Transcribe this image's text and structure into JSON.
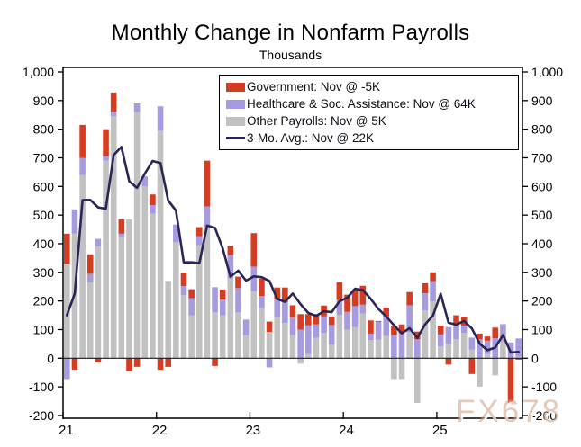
{
  "title": "Monthly Change in Nonfarm Payrolls",
  "subtitle": "Thousands",
  "watermark": "FX678",
  "legend": {
    "items": [
      {
        "label": "Government: Nov @ -5K",
        "color": "#d43d21",
        "type": "box"
      },
      {
        "label": "Healthcare & Soc. Assistance: Nov @ 64K",
        "color": "#a79ade",
        "type": "box"
      },
      {
        "label": "Other Payrolls: Nov @ 5K",
        "color": "#c1c1c1",
        "type": "box"
      },
      {
        "label": "3-Mo. Avg.: Nov @ 22K",
        "color": "#2b2556",
        "type": "line"
      }
    ]
  },
  "chart_data": {
    "type": "bar",
    "subtype": "stacked-bars-with-line",
    "title": "Monthly Change in Nonfarm Payrolls",
    "ylabel": "Thousands",
    "grid": false,
    "legend_position": "top-center",
    "ylim": [
      -210,
      1015
    ],
    "y_ticks": [
      1000,
      900,
      800,
      700,
      600,
      500,
      400,
      300,
      200,
      100,
      0,
      -100,
      -200
    ],
    "x_ticks": [
      {
        "label": "21",
        "index": 0
      },
      {
        "label": "22",
        "index": 12
      },
      {
        "label": "23",
        "index": 24
      },
      {
        "label": "24",
        "index": 36
      },
      {
        "label": "25",
        "index": 48
      }
    ],
    "categories": [
      "Jan-21",
      "Feb-21",
      "Mar-21",
      "Apr-21",
      "May-21",
      "Jun-21",
      "Jul-21",
      "Aug-21",
      "Sep-21",
      "Oct-21",
      "Nov-21",
      "Dec-21",
      "Jan-22",
      "Feb-22",
      "Mar-22",
      "Apr-22",
      "May-22",
      "Jun-22",
      "Jul-22",
      "Aug-22",
      "Sep-22",
      "Oct-22",
      "Nov-22",
      "Dec-22",
      "Jan-23",
      "Feb-23",
      "Mar-23",
      "Apr-23",
      "May-23",
      "Jun-23",
      "Jul-23",
      "Aug-23",
      "Sep-23",
      "Oct-23",
      "Nov-23",
      "Dec-23",
      "Jan-24",
      "Feb-24",
      "Mar-24",
      "Apr-24",
      "May-24",
      "Jun-24",
      "Jul-24",
      "Aug-24",
      "Sep-24",
      "Oct-24",
      "Nov-24",
      "Dec-24",
      "Jan-25",
      "Feb-25",
      "Mar-25",
      "Apr-25",
      "May-25",
      "Jun-25",
      "Jul-25",
      "Aug-25",
      "Sep-25",
      "Oct-25",
      "Nov-25"
    ],
    "series": [
      {
        "name": "Other Payrolls",
        "key": "other",
        "color": "#c1c1c1",
        "values": [
          330,
          435,
          640,
          265,
          390,
          690,
          845,
          425,
          485,
          860,
          600,
          505,
          795,
          270,
          405,
          220,
          150,
          395,
          458,
          160,
          150,
          278,
          160,
          80,
          235,
          175,
          92,
          143,
          123,
          81,
          -19,
          15,
          71,
          88,
          48,
          151,
          100,
          109,
          156,
          63,
          65,
          78,
          -73,
          -73,
          92,
          -156,
          167,
          198,
          41,
          51,
          67,
          88,
          30,
          -99,
          15,
          -60,
          59,
          0,
          5
        ]
      },
      {
        "name": "Healthcare & Soc. Assistance",
        "key": "healthcare",
        "color": "#a79ade",
        "values": [
          -73,
          85,
          60,
          30,
          27,
          15,
          16,
          10,
          0,
          30,
          35,
          30,
          85,
          0,
          62,
          32,
          60,
          31,
          72,
          88,
          55,
          82,
          85,
          55,
          85,
          42,
          -32,
          62,
          72,
          62,
          100,
          100,
          47,
          58,
          68,
          52,
          62,
          73,
          31,
          23,
          62,
          68,
          81,
          87,
          93,
          66,
          60,
          71,
          42,
          58,
          52,
          26,
          42,
          66,
          46,
          70,
          60,
          55,
          64
        ]
      },
      {
        "name": "Government",
        "key": "government",
        "color": "#d43d21",
        "values": [
          105,
          -40,
          115,
          68,
          -15,
          95,
          67,
          50,
          -45,
          -30,
          0,
          37,
          -40,
          -30,
          0,
          46,
          31,
          32,
          160,
          -27,
          35,
          33,
          40,
          0,
          117,
          61,
          36,
          42,
          52,
          42,
          54,
          39,
          36,
          38,
          30,
          63,
          60,
          58,
          66,
          46,
          3,
          31,
          31,
          31,
          46,
          27,
          35,
          31,
          31,
          -22,
          31,
          31,
          -55,
          20,
          15,
          37,
          0,
          -160,
          -5
        ]
      }
    ],
    "line": {
      "name": "3-Mo. Avg.",
      "color": "#2b2556",
      "values": [
        150,
        226,
        552,
        553,
        527,
        522,
        710,
        738,
        618,
        595,
        645,
        689,
        682,
        551,
        516,
        335,
        335,
        332,
        463,
        456,
        384,
        285,
        306,
        271,
        286,
        283,
        270,
        207,
        197,
        226,
        189,
        158,
        148,
        164,
        161,
        199,
        211,
        243,
        238,
        208,
        172,
        146,
        115,
        87,
        105,
        71,
        118,
        149,
        225,
        124,
        117,
        130,
        104,
        51,
        28,
        37,
        81,
        20,
        22
      ]
    }
  },
  "colors": {
    "government": "#d43d21",
    "healthcare": "#a79ade",
    "other": "#c1c1c1",
    "avg_line": "#2b2556",
    "axis": "#000000",
    "background": "#ffffff",
    "watermark": "#ca9e84"
  }
}
